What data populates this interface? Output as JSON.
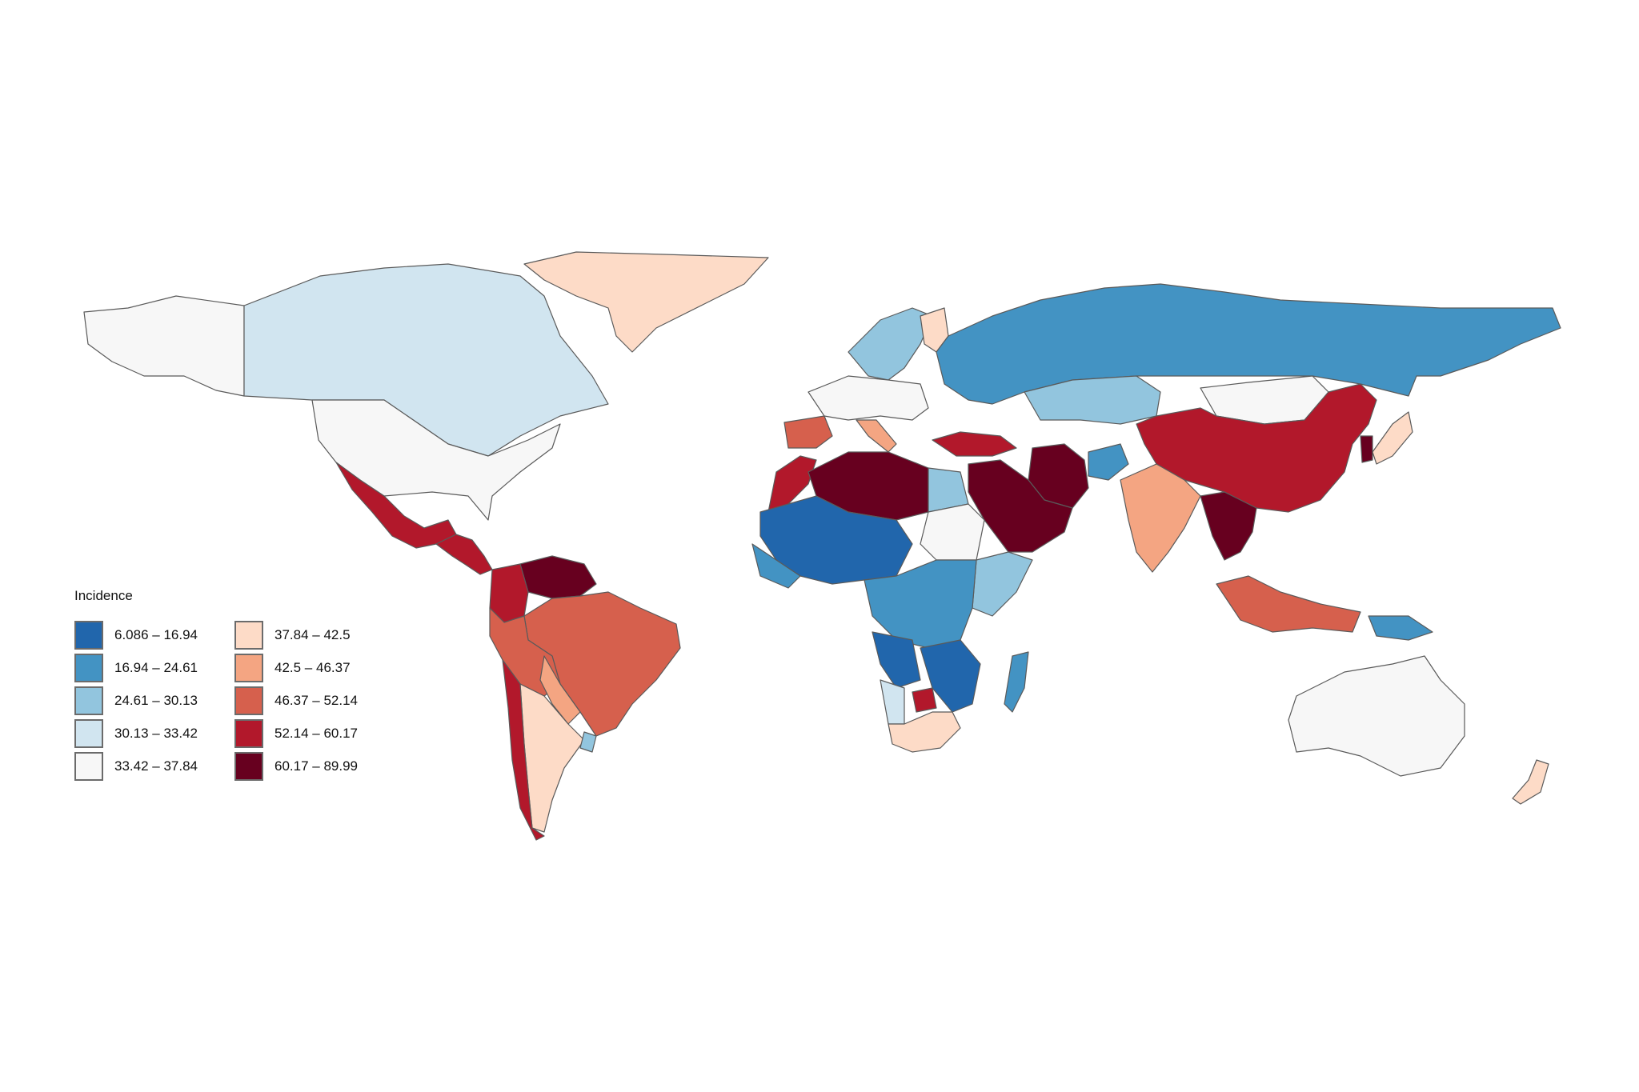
{
  "legend": {
    "title": "Incidence",
    "items": [
      {
        "label": "6.086 – 16.94",
        "color": "#2166ac"
      },
      {
        "label": "16.94 – 24.61",
        "color": "#4393c3"
      },
      {
        "label": "24.61 – 30.13",
        "color": "#92c5de"
      },
      {
        "label": "30.13 – 33.42",
        "color": "#d1e5f0"
      },
      {
        "label": "33.42 – 37.84",
        "color": "#f7f7f7"
      },
      {
        "label": "37.84 – 42.5",
        "color": "#fddbc7"
      },
      {
        "label": "42.5 – 46.37",
        "color": "#f4a582"
      },
      {
        "label": "46.37 – 52.14",
        "color": "#d6604d"
      },
      {
        "label": "52.14 – 60.17",
        "color": "#b2182b"
      },
      {
        "label": "60.17 – 89.99",
        "color": "#67001f"
      }
    ]
  },
  "regions": [
    {
      "name": "alaska",
      "class": 4
    },
    {
      "name": "canada",
      "class": 3
    },
    {
      "name": "greenland",
      "class": 5
    },
    {
      "name": "usa",
      "class": 4
    },
    {
      "name": "mexico",
      "class": 8
    },
    {
      "name": "central-america",
      "class": 8
    },
    {
      "name": "venezuela",
      "class": 9
    },
    {
      "name": "colombia",
      "class": 8
    },
    {
      "name": "brazil",
      "class": 7
    },
    {
      "name": "peru-bolivia",
      "class": 7
    },
    {
      "name": "paraguay",
      "class": 6
    },
    {
      "name": "argentina",
      "class": 5
    },
    {
      "name": "chile",
      "class": 8
    },
    {
      "name": "uruguay",
      "class": 2
    },
    {
      "name": "scandinavia",
      "class": 2
    },
    {
      "name": "finland",
      "class": 5
    },
    {
      "name": "western-europe",
      "class": 4
    },
    {
      "name": "iberia",
      "class": 7
    },
    {
      "name": "italy",
      "class": 6
    },
    {
      "name": "russia",
      "class": 1
    },
    {
      "name": "kazakhstan",
      "class": 2
    },
    {
      "name": "mongolia",
      "class": 4
    },
    {
      "name": "china",
      "class": 8
    },
    {
      "name": "turkey",
      "class": 8
    },
    {
      "name": "iran",
      "class": 9
    },
    {
      "name": "arabia",
      "class": 9
    },
    {
      "name": "afghanistan",
      "class": 1
    },
    {
      "name": "india",
      "class": 6
    },
    {
      "name": "southeast-asia",
      "class": 9
    },
    {
      "name": "indonesia",
      "class": 7
    },
    {
      "name": "japan",
      "class": 5
    },
    {
      "name": "korea",
      "class": 9
    },
    {
      "name": "australia",
      "class": 4
    },
    {
      "name": "new-zealand",
      "class": 5
    },
    {
      "name": "new-guinea",
      "class": 1
    },
    {
      "name": "north-africa",
      "class": 9
    },
    {
      "name": "morocco",
      "class": 8
    },
    {
      "name": "west-africa",
      "class": 0
    },
    {
      "name": "west-africa-coast",
      "class": 1
    },
    {
      "name": "sudan-egypt",
      "class": 4
    },
    {
      "name": "egypt",
      "class": 2
    },
    {
      "name": "east-africa",
      "class": 2
    },
    {
      "name": "central-africa",
      "class": 1
    },
    {
      "name": "southern-africa",
      "class": 0
    },
    {
      "name": "angola-region",
      "class": 0
    },
    {
      "name": "south-africa",
      "class": 5
    },
    {
      "name": "lesotho-region",
      "class": 8
    },
    {
      "name": "madagascar",
      "class": 1
    },
    {
      "name": "namibia",
      "class": 3
    }
  ]
}
